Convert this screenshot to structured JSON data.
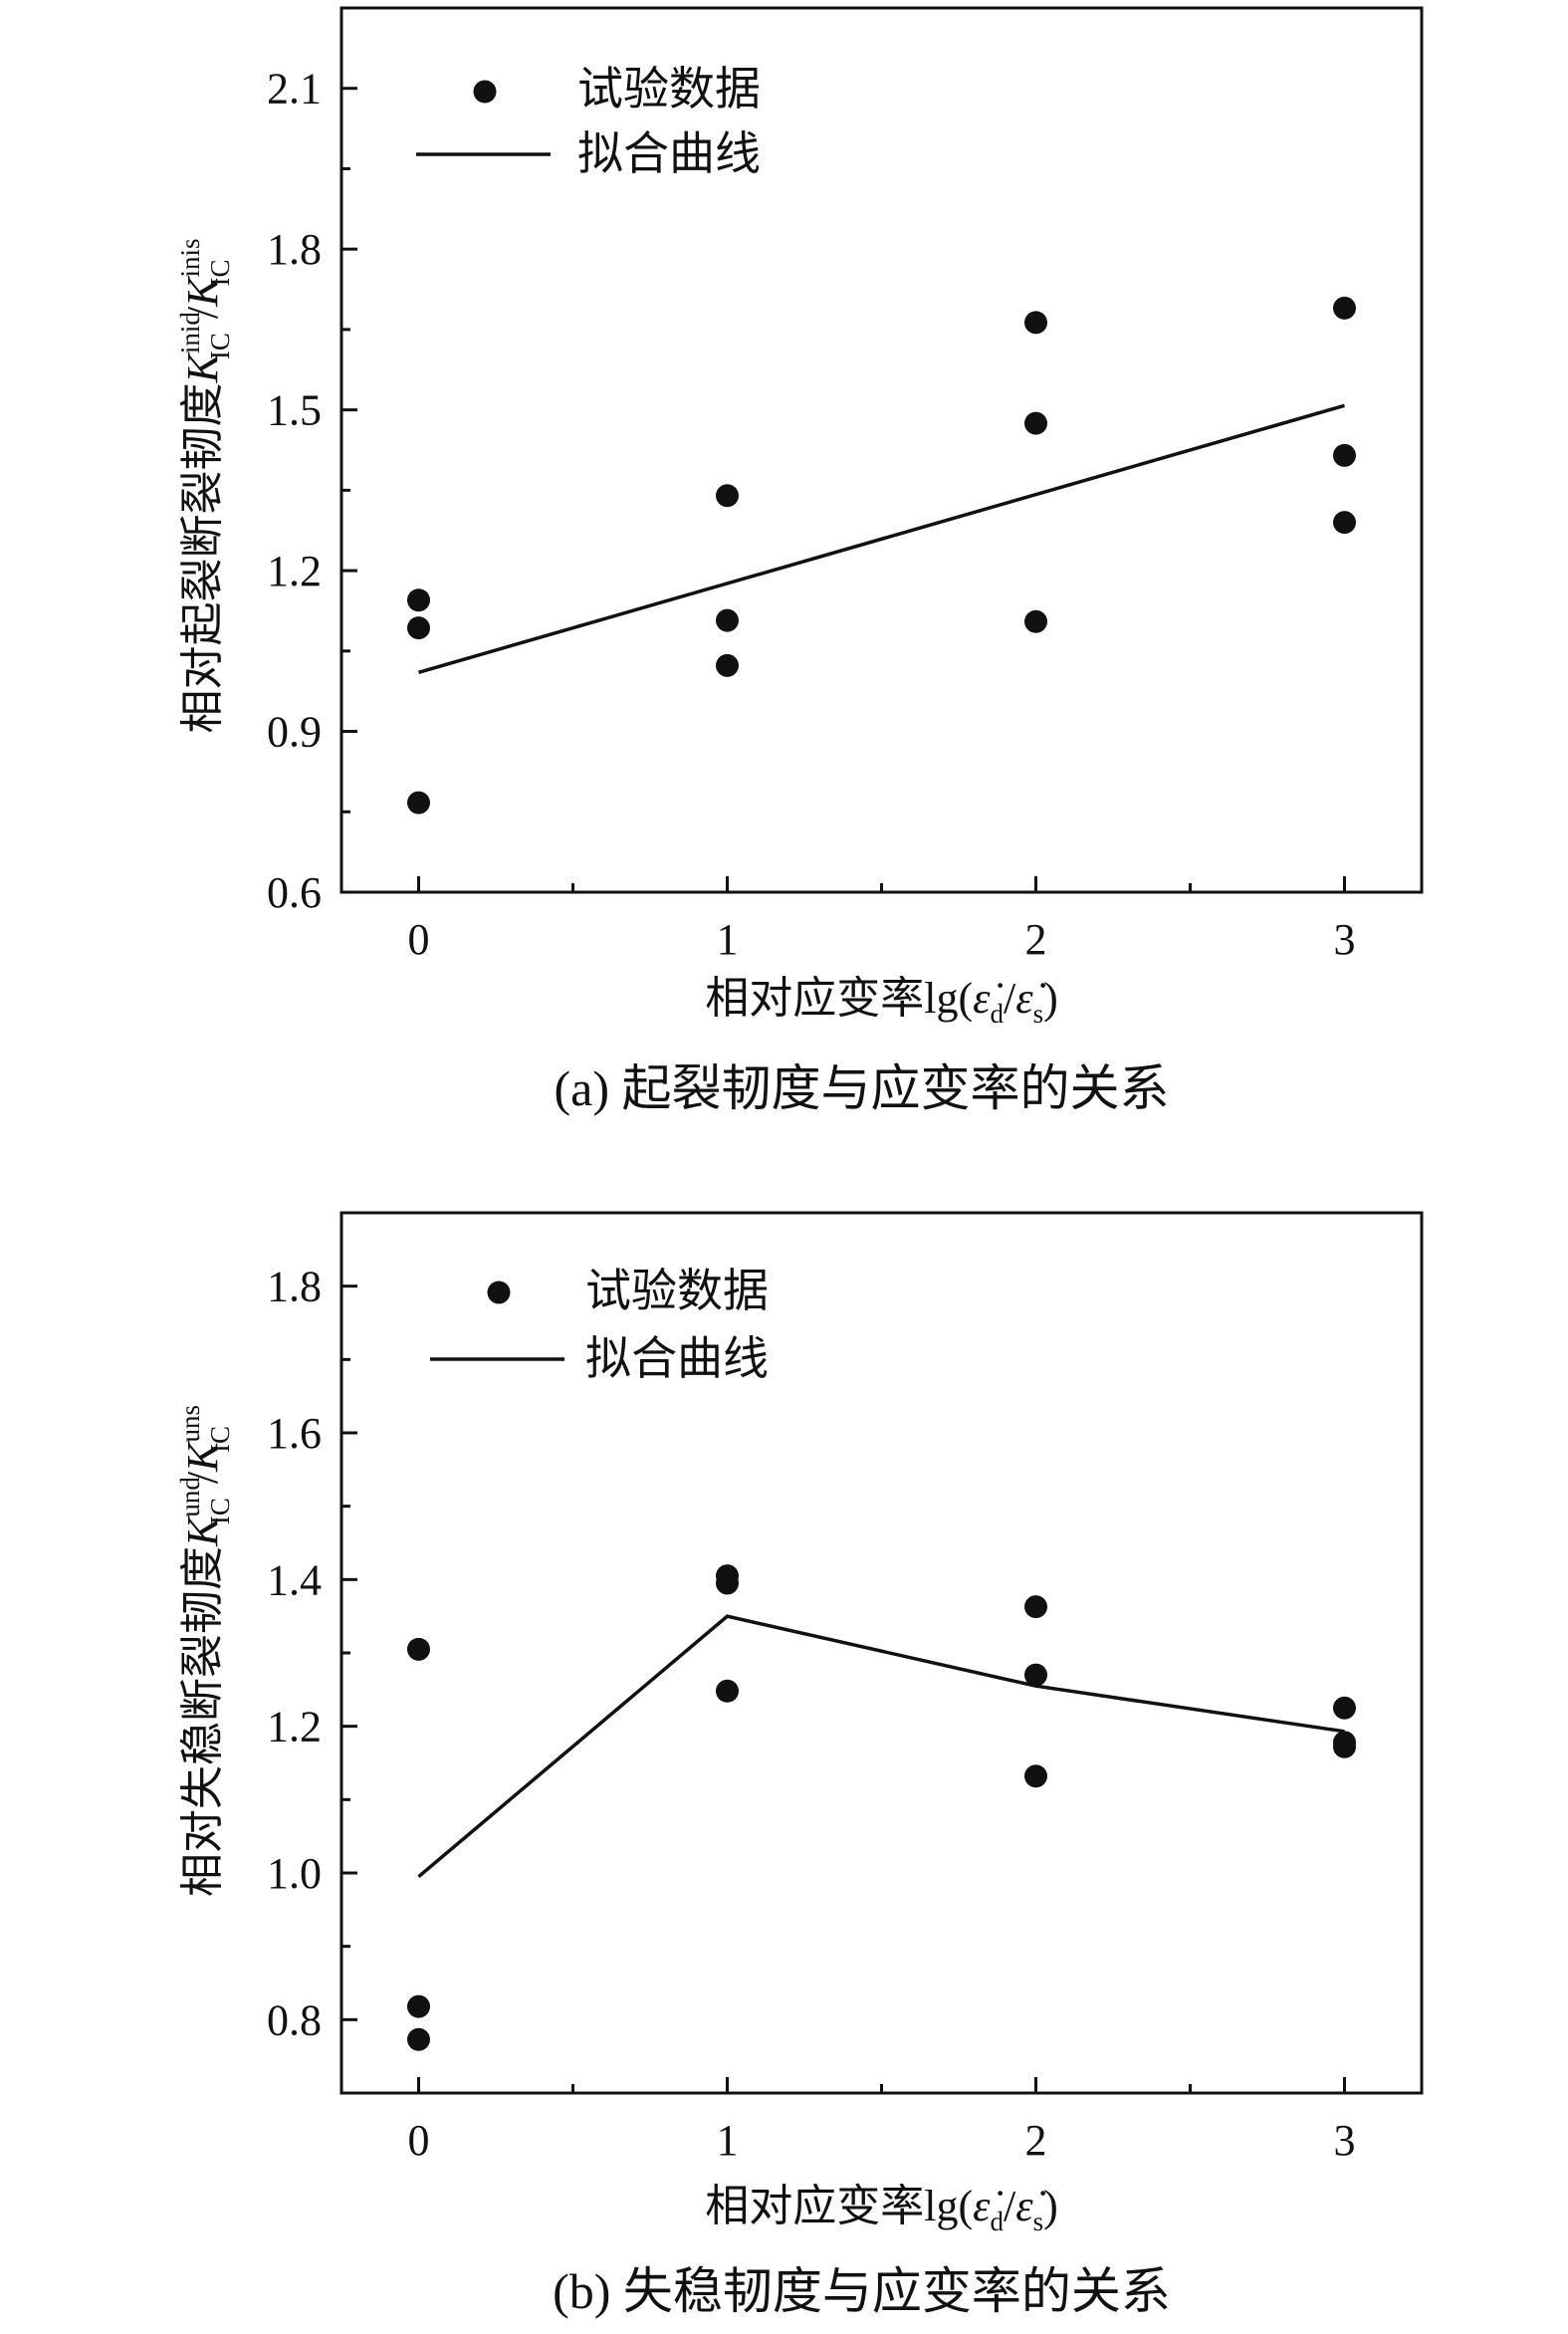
{
  "chart_data": [
    {
      "type": "scatter",
      "xlabel": "相对应变率lg(ε̇d/ε̇s)",
      "ylabel": "相对起裂断裂韧度K_IC^inid/K_IC^inis",
      "caption": "(a) 起裂韧度与应变率的关系",
      "xlim": [
        -0.25,
        3.25
      ],
      "ylim": [
        0.6,
        2.25
      ],
      "xticks": [
        0,
        1,
        2,
        3
      ],
      "yticks": [
        0.6,
        0.9,
        1.2,
        1.5,
        1.8,
        2.1
      ],
      "ytick_labels": [
        "0.6",
        "0.9",
        "1.2",
        "1.5",
        "1.8",
        "2.1"
      ],
      "xtick_labels": [
        "0",
        "1",
        "2",
        "3"
      ],
      "grid": false,
      "legend_position": "top-left",
      "series": [
        {
          "name": "试验数据",
          "kind": "points",
          "points": [
            [
              0,
              1.145
            ],
            [
              0,
              1.093
            ],
            [
              0,
              0.767
            ],
            [
              1,
              1.34
            ],
            [
              1,
              1.107
            ],
            [
              1,
              1.023
            ],
            [
              2,
              1.663
            ],
            [
              2,
              1.475
            ],
            [
              2,
              1.105
            ],
            [
              3,
              1.69
            ],
            [
              3,
              1.415
            ],
            [
              3,
              1.29
            ]
          ]
        },
        {
          "name": "拟合曲线",
          "kind": "line",
          "points": [
            [
              0,
              1.01
            ],
            [
              3,
              1.508
            ]
          ]
        }
      ]
    },
    {
      "type": "scatter",
      "xlabel": "相对应变率lg(ε̇d/ε̇s)",
      "ylabel": "相对失稳断裂韧度K_IC^und/K_IC^uns",
      "caption": "(b) 失稳韧度与应变率的关系",
      "xlim": [
        -0.25,
        3.25
      ],
      "ylim": [
        0.7,
        1.9
      ],
      "xticks": [
        0,
        1,
        2,
        3
      ],
      "yticks": [
        0.8,
        1.0,
        1.2,
        1.4,
        1.6,
        1.8
      ],
      "ytick_labels": [
        "0.8",
        "1.0",
        "1.2",
        "1.4",
        "1.6",
        "1.8"
      ],
      "xtick_labels": [
        "0",
        "1",
        "2",
        "3"
      ],
      "grid": false,
      "legend_position": "top-left",
      "series": [
        {
          "name": "试验数据",
          "kind": "points",
          "points": [
            [
              0,
              1.305
            ],
            [
              0,
              0.818
            ],
            [
              0,
              0.773
            ],
            [
              1,
              1.405
            ],
            [
              1,
              1.395
            ],
            [
              1,
              1.248
            ],
            [
              2,
              1.363
            ],
            [
              2,
              1.27
            ],
            [
              2,
              1.132
            ],
            [
              3,
              1.225
            ],
            [
              3,
              1.178
            ],
            [
              3,
              1.172
            ]
          ]
        },
        {
          "name": "拟合曲线",
          "kind": "line",
          "points": [
            [
              0,
              0.995
            ],
            [
              1,
              1.35
            ],
            [
              2,
              1.255
            ],
            [
              3,
              1.193
            ]
          ]
        }
      ]
    }
  ],
  "text": {
    "a": {
      "ylabel_prefix": "相对起裂断裂韧度",
      "ylabel_K": "K",
      "ylabel_sup1": "inid",
      "ylabel_sub": "IC",
      "ylabel_sup2": "inis",
      "xlabel_prefix": "相对应变率lg(",
      "xlabel_eps": "ε̇",
      "xlabel_d": "d",
      "xlabel_s": "s",
      "xlabel_slash": "/",
      "xlabel_close": ")"
    },
    "b": {
      "ylabel_prefix": "相对失稳断裂韧度",
      "ylabel_K": "K",
      "ylabel_sup1": "und",
      "ylabel_sub": "IC",
      "ylabel_sup2": "uns",
      "xlabel_prefix": "相对应变率lg(",
      "xlabel_eps": "ε̇",
      "xlabel_d": "d",
      "xlabel_s": "s",
      "xlabel_slash": "/",
      "xlabel_close": ")"
    }
  }
}
